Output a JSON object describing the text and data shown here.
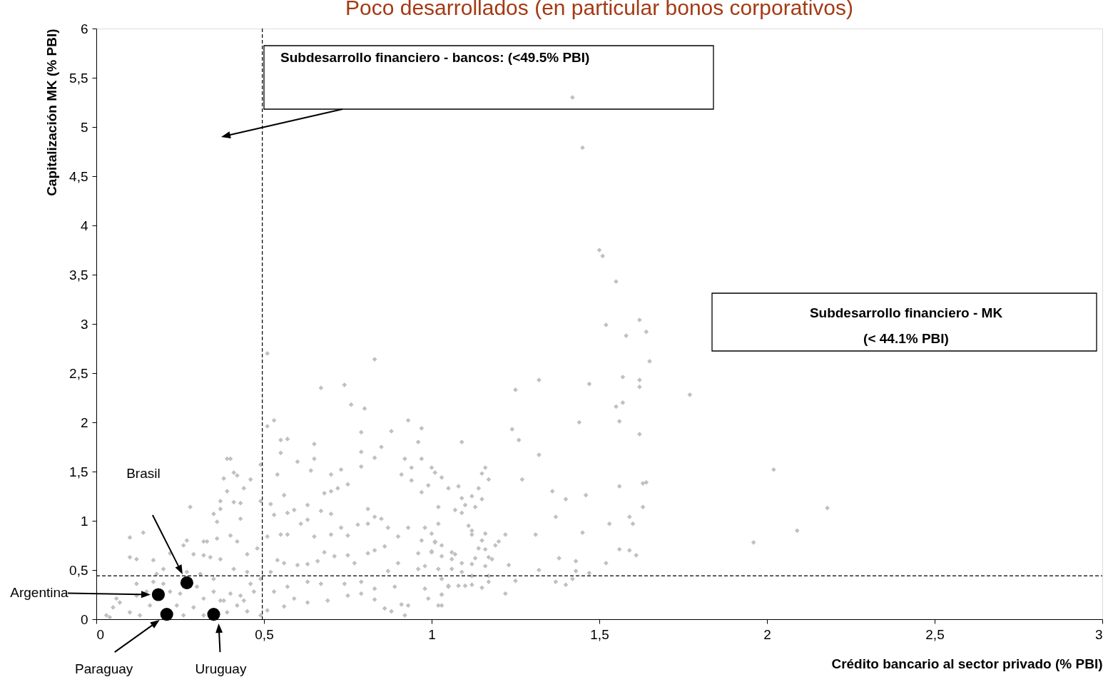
{
  "chart_data": {
    "type": "scatter",
    "title": "Poco desarrollados (en particular bonos corporativos)",
    "xlabel": "Crédito bancario al sector privado (% PBI)",
    "ylabel": "Capitalización MK (% PBI)",
    "xlim": [
      0,
      3
    ],
    "ylim": [
      0,
      6
    ],
    "xticks": [
      0,
      {
        "value": 0.5,
        "label": "0,5"
      },
      1,
      {
        "value": 1.5,
        "label": "1,5"
      },
      2,
      {
        "value": 2.5,
        "label": "2,5"
      },
      3
    ],
    "yticks": [
      0,
      {
        "value": 0.5,
        "label": "0,5"
      },
      1,
      {
        "value": 1.5,
        "label": "1,5"
      },
      2,
      {
        "value": 2.5,
        "label": "2,5"
      },
      3,
      {
        "value": 3.5,
        "label": "3,5"
      },
      4,
      {
        "value": 4.5,
        "label": "4,5"
      },
      5,
      {
        "value": 5.5,
        "label": "5,5"
      },
      6
    ],
    "ref_lines": [
      {
        "axis": "x",
        "value": 0.495,
        "label": "Subdesarrollo financiero - bancos: (<49.5% PBI)",
        "color": "#000000",
        "line_style": "dashed"
      },
      {
        "axis": "y",
        "value": 0.441,
        "color": "#000000",
        "line_style": "dashed"
      }
    ],
    "series": [
      {
        "color": "#c0c0c0",
        "marker": "diamond",
        "x": [
          1.42,
          1.45,
          1.5,
          1.51,
          1.55,
          1.62,
          1.64,
          1.52,
          1.58,
          1.65,
          1.77,
          1.62,
          1.62,
          1.57,
          1.47,
          1.55,
          1.57,
          1.56,
          1.44,
          1.62,
          2.02,
          2.18,
          2.09,
          1.96,
          1.63,
          1.63,
          1.25,
          1.32,
          1.24,
          1.26,
          1.32,
          1.27,
          1.36,
          1.4,
          1.37,
          1.46,
          1.56,
          1.64,
          1.59,
          1.6,
          1.53,
          1.45,
          1.31,
          1.22,
          1.56,
          1.61,
          1.59,
          1.52,
          1.43,
          1.38,
          1.47,
          1.43,
          1.32,
          1.23,
          1.37,
          1.4,
          1.42,
          1.25,
          1.22,
          1.0,
          1.01,
          1.03,
          1.05,
          1.08,
          1.09,
          1.12,
          1.15,
          1.16,
          1.17,
          1.14,
          1.15,
          1.13,
          1.1,
          1.07,
          1.09,
          1.02,
          1.02,
          1.0,
          1.11,
          1.12,
          1.12,
          1.16,
          1.15,
          1.19,
          1.2,
          1.01,
          1.0,
          1.03,
          1.06,
          1.06,
          1.06,
          1.02,
          1.14,
          1.16,
          1.17,
          1.18,
          1.13,
          1.16,
          1.09,
          1.12,
          1.09,
          1.12,
          1.17,
          1.05,
          1.08,
          1.1,
          1.12,
          1.15,
          1.17,
          1.03,
          1.02,
          1.03,
          0.99,
          0.51,
          0.83,
          0.67,
          0.74,
          0.76,
          0.8,
          0.53,
          0.51,
          0.93,
          0.97,
          0.88,
          0.79,
          1.09,
          0.55,
          0.57,
          0.65,
          0.96,
          0.55,
          0.79,
          0.85,
          0.83,
          0.65,
          0.6,
          0.92,
          0.97,
          0.79,
          0.73,
          0.64,
          0.39,
          0.4,
          0.49,
          0.41,
          0.42,
          0.54,
          0.7,
          0.91,
          0.94,
          0.75,
          0.72,
          0.68,
          0.7,
          0.99,
          0.94,
          0.97,
          0.38,
          0.46,
          0.44,
          0.39,
          0.49,
          0.37,
          0.41,
          0.43,
          0.28,
          0.35,
          0.37,
          0.43,
          0.36,
          0.52,
          0.56,
          0.53,
          0.57,
          0.59,
          0.63,
          0.67,
          0.7,
          0.81,
          0.83,
          0.85,
          0.78,
          0.81,
          0.73,
          0.61,
          0.63,
          0.51,
          0.55,
          0.57,
          0.65,
          0.7,
          0.75,
          0.87,
          0.93,
          0.98,
          0.9,
          0.97,
          1.01,
          1.03,
          1.07,
          0.96,
          1.0,
          0.98,
          0.96,
          0.9,
          0.87,
          0.81,
          0.83,
          0.86,
          0.77,
          0.75,
          0.71,
          0.68,
          0.66,
          0.63,
          0.6,
          0.56,
          0.54,
          0.52,
          0.48,
          0.45,
          0.42,
          0.4,
          0.36,
          0.33,
          0.32,
          0.27,
          0.26,
          0.1,
          0.14,
          0.1,
          0.12,
          0.17,
          0.2,
          0.22,
          0.29,
          0.32,
          0.34,
          0.37,
          0.41,
          0.45,
          1.03,
          1.05,
          1.03,
          0.92,
          0.88,
          0.86,
          0.93,
          0.91,
          0.83,
          0.79,
          0.75,
          0.69,
          0.63,
          0.59,
          0.56,
          0.51,
          0.49,
          0.45,
          0.42,
          0.39,
          0.38,
          0.43,
          0.47,
          0.53,
          0.57,
          0.63,
          0.67,
          0.74,
          0.79,
          0.83,
          0.89,
          0.98,
          0.04,
          0.05,
          0.07,
          0.1,
          0.12,
          0.13,
          0.16,
          0.15,
          0.18,
          0.2,
          0.22,
          0.24,
          0.25,
          0.26,
          0.29,
          0.3,
          0.32,
          0.35,
          0.35,
          0.37,
          0.31,
          0.27,
          0.17,
          0.12,
          0.06,
          0.03,
          0.32,
          0.4,
          0.46,
          0.49,
          0.44
        ],
        "values": [
          5.3,
          4.79,
          3.75,
          3.69,
          3.43,
          3.04,
          2.92,
          2.99,
          2.88,
          2.62,
          2.28,
          2.43,
          2.36,
          2.46,
          2.39,
          2.16,
          2.2,
          2.01,
          2.0,
          1.88,
          1.52,
          1.13,
          0.9,
          0.78,
          1.38,
          1.14,
          2.33,
          2.43,
          1.93,
          1.82,
          1.67,
          1.42,
          1.3,
          1.22,
          1.04,
          1.26,
          1.35,
          1.39,
          1.04,
          0.97,
          0.97,
          0.88,
          0.86,
          0.86,
          0.71,
          0.65,
          0.7,
          0.57,
          0.59,
          0.62,
          0.47,
          0.49,
          0.5,
          0.55,
          0.38,
          0.35,
          0.41,
          0.39,
          0.26,
          1.54,
          1.49,
          1.44,
          1.33,
          1.35,
          1.23,
          1.25,
          1.48,
          1.54,
          1.42,
          1.33,
          1.22,
          1.14,
          1.16,
          1.11,
          1.08,
          1.14,
          0.97,
          0.87,
          0.95,
          0.9,
          0.86,
          0.87,
          0.8,
          0.75,
          0.79,
          0.78,
          0.69,
          0.64,
          0.68,
          0.61,
          0.51,
          0.51,
          0.72,
          0.71,
          0.63,
          0.61,
          0.62,
          0.54,
          0.57,
          0.56,
          0.48,
          0.44,
          0.44,
          0.34,
          0.34,
          0.34,
          0.35,
          0.32,
          0.38,
          0.25,
          0.14,
          0.14,
          0.21,
          2.7,
          2.64,
          2.35,
          2.38,
          2.18,
          2.14,
          2.02,
          1.96,
          2.02,
          1.94,
          1.91,
          1.9,
          1.8,
          1.82,
          1.83,
          1.78,
          1.8,
          1.69,
          1.7,
          1.75,
          1.64,
          1.63,
          1.6,
          1.63,
          1.63,
          1.55,
          1.52,
          1.51,
          1.63,
          1.63,
          1.57,
          1.49,
          1.46,
          1.47,
          1.47,
          1.47,
          1.54,
          1.37,
          1.33,
          1.28,
          1.3,
          1.36,
          1.41,
          1.29,
          1.43,
          1.42,
          1.33,
          1.3,
          1.2,
          1.2,
          1.19,
          1.18,
          1.14,
          1.07,
          1.12,
          1.02,
          0.99,
          1.17,
          1.26,
          1.06,
          1.08,
          1.11,
          1.16,
          1.1,
          1.07,
          1.12,
          1.04,
          1.02,
          0.96,
          0.97,
          0.93,
          0.97,
          1.01,
          0.84,
          0.86,
          0.86,
          0.84,
          0.86,
          0.85,
          0.93,
          0.93,
          0.93,
          0.84,
          0.8,
          0.79,
          0.75,
          0.66,
          0.67,
          0.68,
          0.54,
          0.51,
          0.57,
          0.49,
          0.67,
          0.7,
          0.74,
          0.57,
          0.65,
          0.64,
          0.68,
          0.59,
          0.56,
          0.55,
          0.57,
          0.6,
          0.48,
          0.72,
          0.66,
          0.79,
          0.85,
          0.82,
          0.79,
          0.79,
          0.8,
          0.75,
          0.83,
          0.88,
          0.63,
          0.61,
          0.6,
          0.51,
          0.67,
          0.66,
          0.65,
          0.63,
          0.61,
          0.51,
          0.48,
          0.41,
          0.33,
          0.25,
          0.04,
          0.08,
          0.11,
          0.14,
          0.15,
          0.2,
          0.26,
          0.24,
          0.19,
          0.17,
          0.21,
          0.13,
          0.09,
          0.04,
          0.08,
          0.14,
          0.07,
          0.19,
          0.24,
          0.28,
          0.28,
          0.33,
          0.38,
          0.36,
          0.36,
          0.38,
          0.31,
          0.33,
          0.31,
          0.02,
          0.12,
          0.17,
          0.07,
          0.24,
          0.04,
          0.14,
          0.28,
          0.46,
          0.36,
          0.28,
          0.14,
          0.26,
          0.04,
          0.12,
          0.33,
          0.21,
          0.28,
          0.41,
          0.19,
          0.46,
          0.48,
          0.38,
          0.36,
          0.21,
          0.04,
          0.04,
          0.26,
          0.36,
          0.41,
          0.19
        ]
      },
      {
        "color": "#000000",
        "marker": "circle",
        "x": [
          0.185,
          0.27,
          0.21,
          0.35
        ],
        "values": [
          0.25,
          0.37,
          0.05,
          0.05
        ]
      }
    ],
    "annotations": [
      "Argentina",
      "Brasil",
      "Paraguay",
      "Uruguay",
      "Subdesarrollo financiero - MK\n(< 44.1% PBI)"
    ]
  }
}
